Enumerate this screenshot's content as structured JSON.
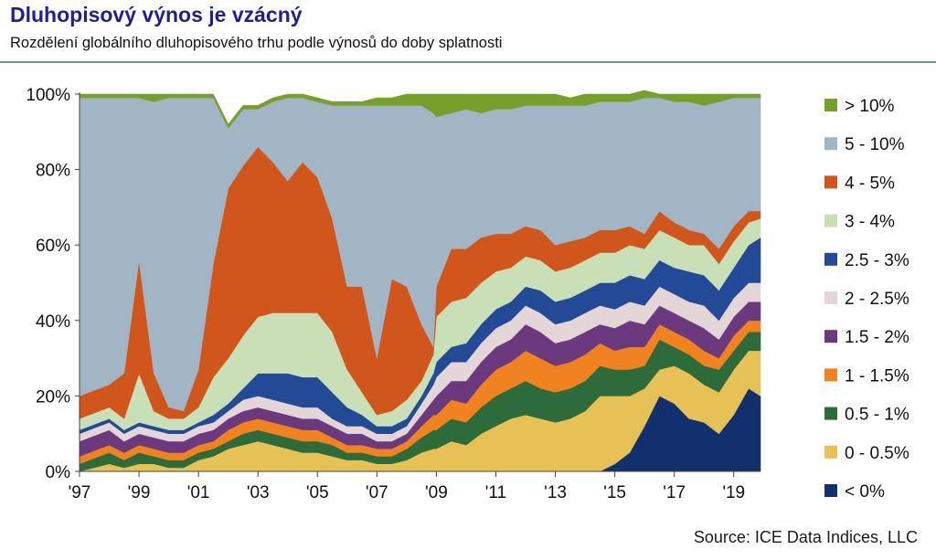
{
  "header": {
    "title": "Dluhopisový výnos je vzácný",
    "subtitle": "Rozdělení globálního dluhopisového trhu podle výnosů do doby splatnosti"
  },
  "footer": {
    "source": "Source: ICE Data Indices, LLC"
  },
  "colors": {
    "rule": "#6e8fb8",
    "title": "#1f1f8f"
  },
  "chart_data": {
    "type": "area",
    "stacked": true,
    "normalized": true,
    "title": "",
    "xlabel": "",
    "ylabel": "",
    "ylim": [
      0,
      100
    ],
    "y_ticks": [
      "0%",
      "20%",
      "40%",
      "60%",
      "80%",
      "100%"
    ],
    "x_ticks": [
      "'97",
      "'99",
      "'01",
      "'03",
      "'05",
      "'07",
      "'09",
      "'11",
      "'13",
      "'15",
      "'17",
      "'19"
    ],
    "legend_position": "right",
    "x": [
      1997.0,
      1998.0,
      1998.5,
      1999.0,
      1999.5,
      2000.0,
      2000.5,
      2001.0,
      2001.5,
      2002.0,
      2002.5,
      2003.0,
      2003.5,
      2004.0,
      2004.5,
      2005.0,
      2005.5,
      2006.0,
      2006.5,
      2007.0,
      2007.5,
      2008.0,
      2008.5,
      2008.9,
      2009.0,
      2009.5,
      2010.0,
      2010.5,
      2011.0,
      2011.5,
      2012.0,
      2012.5,
      2013.0,
      2013.5,
      2014.0,
      2014.5,
      2015.0,
      2015.5,
      2016.0,
      2016.5,
      2017.0,
      2017.5,
      2018.0,
      2018.5,
      2019.0,
      2019.5,
      2019.9
    ],
    "series": [
      {
        "name": "< 0%",
        "color": "#13306e",
        "values": [
          0,
          0,
          0,
          0,
          0,
          0,
          0,
          0,
          0,
          0,
          0,
          0,
          0,
          0,
          0,
          0,
          0,
          0,
          0,
          0,
          0,
          0,
          0,
          0,
          0,
          0,
          0,
          0,
          0,
          0,
          0,
          0,
          0,
          0,
          0,
          0,
          2,
          5,
          12,
          20,
          18,
          14,
          13,
          10,
          15,
          22,
          20
        ]
      },
      {
        "name": "0 - 0.5%",
        "color": "#e6c256",
        "values": [
          0,
          2,
          1,
          2,
          2,
          1,
          1,
          3,
          4,
          6,
          7,
          8,
          7,
          6,
          5,
          5,
          4,
          3,
          3,
          2,
          2,
          3,
          5,
          6,
          6,
          8,
          7,
          10,
          12,
          14,
          15,
          14,
          13,
          14,
          16,
          20,
          18,
          15,
          10,
          7,
          10,
          12,
          10,
          11,
          12,
          10,
          12
        ]
      },
      {
        "name": "0.5 - 1%",
        "color": "#2e6b3a",
        "values": [
          2,
          3,
          2,
          3,
          2,
          2,
          2,
          2,
          2,
          2,
          3,
          3,
          3,
          3,
          3,
          3,
          3,
          2,
          2,
          2,
          2,
          3,
          4,
          5,
          5,
          6,
          6,
          7,
          8,
          8,
          9,
          8,
          8,
          8,
          8,
          8,
          7,
          7,
          6,
          8,
          5,
          5,
          5,
          6,
          5,
          5,
          5
        ]
      },
      {
        "name": "1 - 1.5%",
        "color": "#f08220",
        "values": [
          2,
          2,
          2,
          2,
          2,
          2,
          2,
          2,
          2,
          3,
          3,
          3,
          3,
          3,
          3,
          3,
          2,
          2,
          2,
          2,
          2,
          2,
          3,
          4,
          4,
          5,
          5,
          6,
          7,
          7,
          8,
          8,
          7,
          7,
          7,
          6,
          5,
          6,
          5,
          4,
          4,
          4,
          4,
          3,
          4,
          3,
          3
        ]
      },
      {
        "name": "1.5 - 2%",
        "color": "#6b3a7e",
        "values": [
          4,
          4,
          3,
          3,
          3,
          3,
          3,
          3,
          3,
          3,
          3,
          3,
          3,
          3,
          3,
          3,
          3,
          3,
          3,
          2,
          2,
          2,
          3,
          4,
          5,
          5,
          6,
          6,
          6,
          6,
          7,
          7,
          6,
          6,
          6,
          5,
          6,
          7,
          6,
          5,
          5,
          5,
          6,
          5,
          5,
          5,
          5
        ]
      },
      {
        "name": "2 - 2.5%",
        "color": "#e4d6d6",
        "values": [
          2,
          2,
          2,
          2,
          2,
          2,
          2,
          2,
          2,
          2,
          3,
          3,
          3,
          3,
          3,
          3,
          2,
          2,
          2,
          2,
          2,
          2,
          3,
          4,
          5,
          5,
          5,
          5,
          5,
          5,
          5,
          5,
          5,
          5,
          5,
          5,
          5,
          5,
          5,
          5,
          5,
          5,
          6,
          5,
          5,
          5,
          5
        ]
      },
      {
        "name": "2.5 - 3%",
        "color": "#234a96",
        "values": [
          1,
          1,
          1,
          1,
          1,
          1,
          1,
          1,
          2,
          2,
          3,
          6,
          7,
          8,
          8,
          8,
          7,
          5,
          3,
          2,
          2,
          2,
          2,
          3,
          4,
          4,
          5,
          5,
          5,
          5,
          5,
          6,
          6,
          6,
          6,
          6,
          7,
          7,
          7,
          7,
          7,
          8,
          8,
          8,
          8,
          10,
          12
        ]
      },
      {
        "name": "3 - 4%",
        "color": "#c9dfb6",
        "values": [
          3,
          3,
          3,
          13,
          4,
          3,
          3,
          4,
          10,
          12,
          14,
          15,
          16,
          16,
          17,
          17,
          16,
          10,
          6,
          3,
          4,
          5,
          4,
          5,
          12,
          12,
          12,
          11,
          10,
          9,
          8,
          8,
          8,
          8,
          8,
          8,
          8,
          8,
          8,
          8,
          8,
          7,
          8,
          7,
          7,
          6,
          5
        ]
      },
      {
        "name": "4 - 5%",
        "color": "#d0561b",
        "values": [
          6,
          6,
          12,
          30,
          10,
          3,
          2,
          10,
          30,
          45,
          45,
          45,
          40,
          35,
          40,
          36,
          30,
          22,
          28,
          15,
          35,
          30,
          15,
          2,
          8,
          14,
          13,
          12,
          10,
          9,
          8,
          8,
          7,
          7,
          6,
          6,
          6,
          5,
          4,
          5,
          4,
          4,
          3,
          4,
          4,
          3,
          2
        ]
      },
      {
        "name": "5 - 10%",
        "color": "#a2b5c4",
        "values": [
          79,
          76,
          73,
          43,
          72,
          82,
          83,
          72,
          44,
          16,
          15,
          10,
          16,
          22,
          17,
          20,
          30,
          48,
          48,
          67,
          46,
          48,
          58,
          62,
          45,
          36,
          37,
          33,
          33,
          33,
          32,
          33,
          37,
          36,
          35,
          34,
          34,
          33,
          36,
          30,
          32,
          34,
          34,
          39,
          34,
          30,
          30
        ]
      },
      {
        "name": "> 10%",
        "color": "#76a02a",
        "values": [
          1,
          1,
          1,
          1,
          2,
          1,
          1,
          1,
          1,
          1,
          1,
          1,
          1,
          1,
          1,
          1,
          1,
          1,
          1,
          2,
          2,
          3,
          3,
          5,
          6,
          5,
          4,
          5,
          4,
          4,
          3,
          3,
          3,
          2,
          3,
          2,
          2,
          2,
          2,
          1,
          2,
          2,
          3,
          2,
          1,
          1,
          1
        ]
      }
    ]
  }
}
